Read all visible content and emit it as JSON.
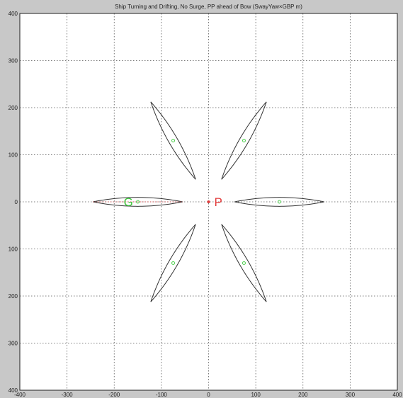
{
  "chart_data": {
    "type": "line",
    "title": "Ship Turning and Drifting, No Surge, PP ahead of Bow (SwayYaw×GBP m)",
    "xlim": [
      -400,
      400
    ],
    "ylim": [
      -400,
      400
    ],
    "xticks": [
      -400,
      -300,
      -200,
      -100,
      0,
      100,
      200,
      300,
      400
    ],
    "yticks": [
      -400,
      -300,
      -200,
      -100,
      0,
      100,
      200,
      300,
      400
    ],
    "ytick_labels": [
      "400",
      "300",
      "200",
      "100",
      "0",
      "100",
      "200",
      "300",
      "400"
    ],
    "grid": true,
    "hull_length": 190,
    "hull_beam": 19,
    "pivot_point": {
      "label": "P",
      "x": 0,
      "y": 0,
      "color": "#e23a3a"
    },
    "cg_label": {
      "label": "G",
      "x": -170,
      "y": 0,
      "color": "#3cc83c"
    },
    "ships": [
      {
        "name": "ship-red",
        "cx": -150,
        "cy": 0,
        "heading_deg": 0,
        "color": "#e23a3a",
        "cg": [
          -150,
          0
        ]
      },
      {
        "name": "ship-right",
        "cx": 150,
        "cy": 0,
        "heading_deg": 0,
        "color": "#333333",
        "cg": [
          150,
          0
        ]
      },
      {
        "name": "ship-upper-right",
        "cx": 75,
        "cy": 130,
        "heading_deg": 60,
        "color": "#333333",
        "cg": [
          75,
          130
        ]
      },
      {
        "name": "ship-upper-left",
        "cx": -75,
        "cy": 130,
        "heading_deg": 120,
        "color": "#333333",
        "cg": [
          -75,
          130
        ]
      },
      {
        "name": "ship-lower-left",
        "cx": -75,
        "cy": -130,
        "heading_deg": 60,
        "color": "#333333",
        "cg": [
          -75,
          -130
        ]
      },
      {
        "name": "ship-lower-right",
        "cx": 75,
        "cy": -130,
        "heading_deg": 120,
        "color": "#333333",
        "cg": [
          75,
          -130
        ]
      }
    ]
  }
}
